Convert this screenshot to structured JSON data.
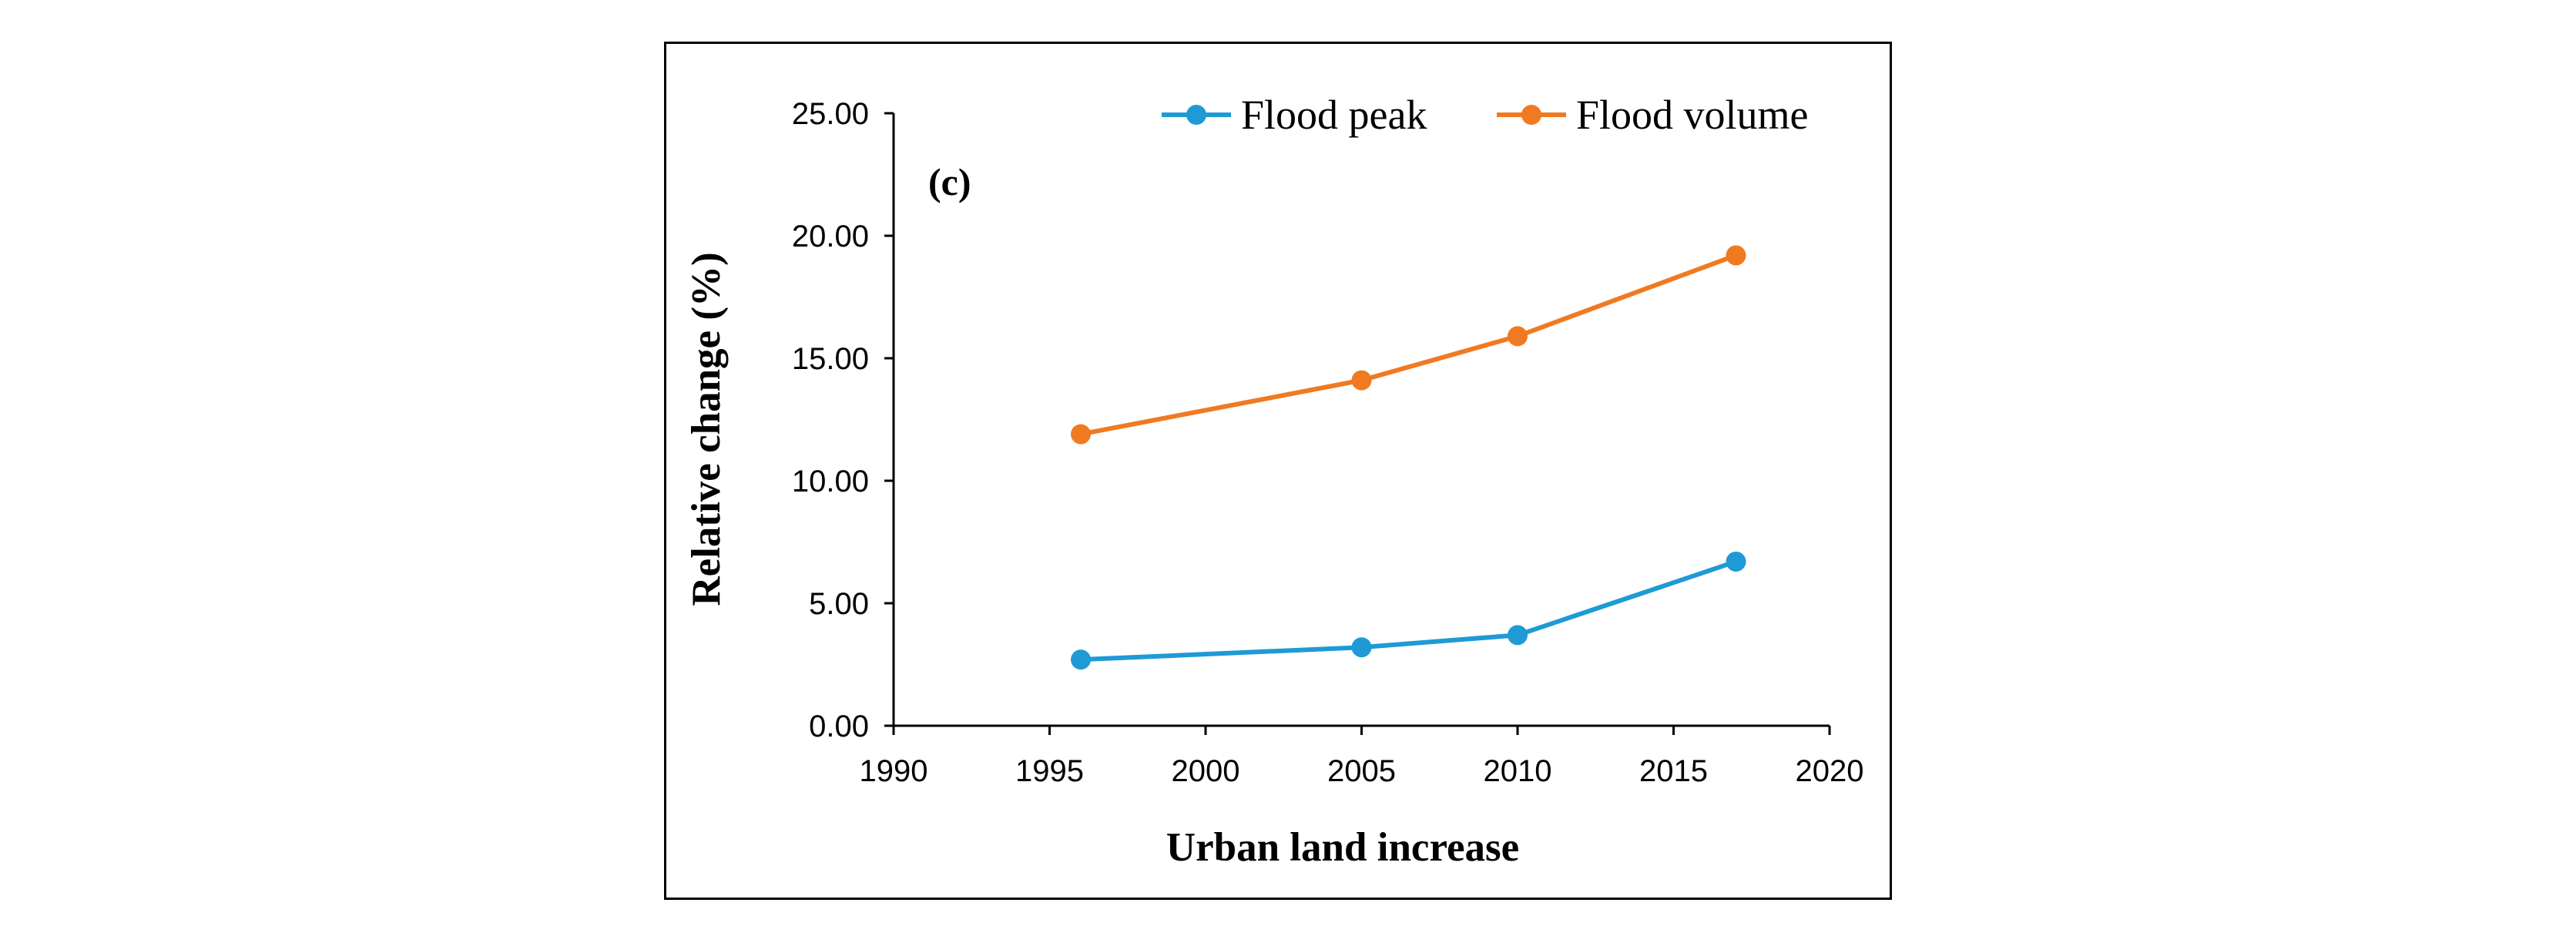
{
  "chart_data": {
    "type": "line",
    "title": "",
    "panel_label": "(c)",
    "xlabel": "Urban land increase",
    "ylabel": "Relative change (%)",
    "xlim": [
      1990,
      2020
    ],
    "ylim": [
      0,
      25
    ],
    "x_ticks": [
      "1990",
      "1995",
      "2000",
      "2005",
      "2010",
      "2015",
      "2020"
    ],
    "y_ticks": [
      "0.00",
      "5.00",
      "10.00",
      "15.00",
      "20.00",
      "25.00"
    ],
    "grid": false,
    "legend_position": "top-right",
    "x": [
      1996,
      2005,
      2010,
      2017
    ],
    "series": [
      {
        "name": "Flood peak",
        "color": "#1f9ad6",
        "values": [
          2.7,
          3.2,
          3.7,
          6.7
        ]
      },
      {
        "name": "Flood volume",
        "color": "#f07a22",
        "values": [
          11.9,
          14.1,
          15.9,
          19.2
        ]
      }
    ]
  }
}
